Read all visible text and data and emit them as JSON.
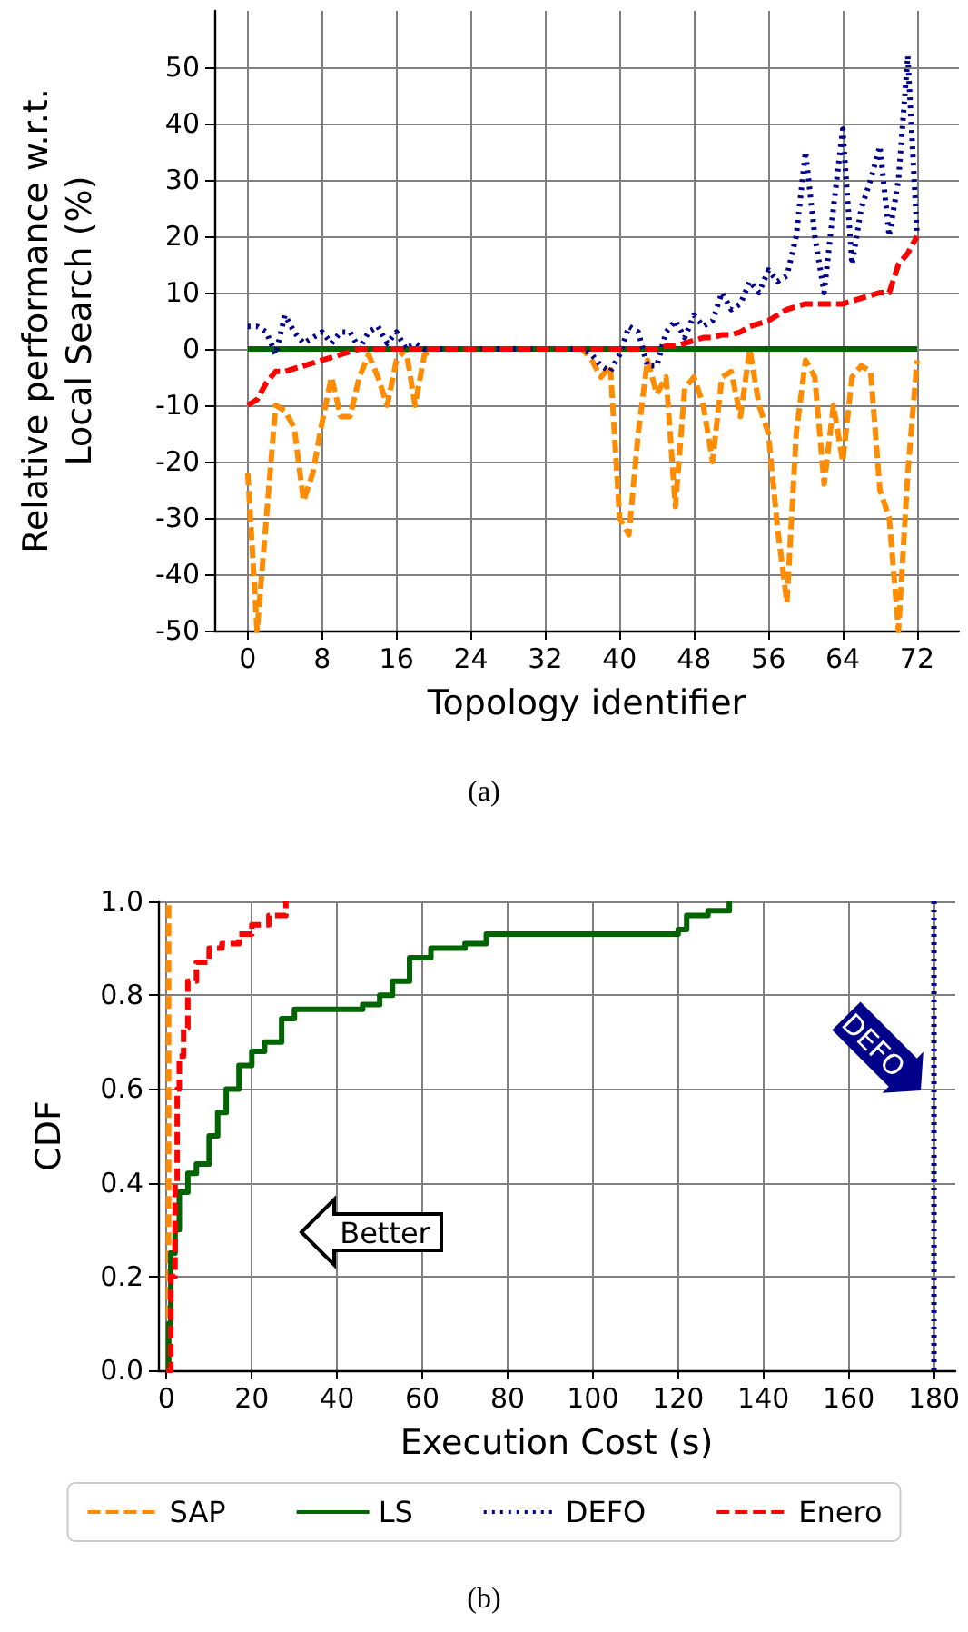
{
  "chart_data": [
    {
      "type": "line",
      "xlabel": "Topology identifier",
      "ylabel": "Relative performance w.r.t.\nLocal Search (%)",
      "xlim": [
        -3.6,
        76.5
      ],
      "ylim": [
        -50,
        60
      ],
      "xticks": [
        0,
        8,
        16,
        24,
        32,
        40,
        48,
        56,
        64,
        72
      ],
      "yticks": [
        -50,
        -40,
        -30,
        -20,
        -10,
        0,
        10,
        20,
        30,
        40,
        50
      ],
      "grid": true,
      "legend": false,
      "marker": "none",
      "annotations": [
        "(a)"
      ],
      "x": [
        0,
        1,
        2,
        3,
        4,
        5,
        6,
        7,
        8,
        9,
        10,
        11,
        12,
        13,
        14,
        15,
        16,
        17,
        18,
        19,
        20,
        21,
        22,
        23,
        24,
        25,
        26,
        27,
        28,
        29,
        30,
        31,
        32,
        33,
        34,
        35,
        36,
        37,
        38,
        39,
        40,
        41,
        42,
        43,
        44,
        45,
        46,
        47,
        48,
        49,
        50,
        51,
        52,
        53,
        54,
        55,
        56,
        57,
        58,
        59,
        60,
        61,
        62,
        63,
        64,
        65,
        66,
        67,
        68,
        69,
        70,
        71,
        72
      ],
      "series": [
        {
          "color": "#ff8c00",
          "line_style": "dashed",
          "values": [
            -22,
            -50,
            -30,
            -10,
            -11,
            -14,
            -27,
            -22,
            -13,
            -5,
            -12,
            -12,
            -5,
            -1,
            -5,
            -10,
            -2,
            0,
            -10,
            -1,
            0,
            0,
            0,
            0,
            0,
            0,
            0,
            0,
            0,
            0,
            0,
            0,
            0,
            0,
            0,
            0,
            0,
            -2,
            -5,
            -3,
            -30,
            -33,
            -15,
            -2,
            -8,
            -5,
            -28,
            -7,
            -5,
            -10,
            -20,
            -5,
            -4,
            -12,
            0,
            -10,
            -15,
            -32,
            -45,
            -15,
            -2,
            -5,
            -24,
            -10,
            -20,
            -5,
            -3,
            -4,
            -25,
            -30,
            -50,
            -22,
            -2
          ]
        },
        {
          "color": "#006400",
          "line_style": "solid",
          "values": [
            0,
            0,
            0,
            0,
            0,
            0,
            0,
            0,
            0,
            0,
            0,
            0,
            0,
            0,
            0,
            0,
            0,
            0,
            0,
            0,
            0,
            0,
            0,
            0,
            0,
            0,
            0,
            0,
            0,
            0,
            0,
            0,
            0,
            0,
            0,
            0,
            0,
            0,
            0,
            0,
            0,
            0,
            0,
            0,
            0,
            0,
            0,
            0,
            0,
            0,
            0,
            0,
            0,
            0,
            0,
            0,
            0,
            0,
            0,
            0,
            0,
            0,
            0,
            0,
            0,
            0,
            0,
            0,
            0,
            0,
            0,
            0,
            0
          ]
        },
        {
          "color": "#00008b",
          "line_style": "dotted",
          "values": [
            4,
            4,
            3,
            -1,
            6,
            3,
            1,
            2,
            3,
            1,
            3,
            3,
            0,
            3,
            4,
            1,
            3,
            0,
            1,
            0,
            0,
            0,
            0,
            0,
            0,
            0,
            0,
            0,
            0,
            0,
            0,
            0,
            0,
            0,
            0,
            0,
            0,
            -1,
            -3,
            -4,
            -1,
            4,
            3,
            -3,
            -3,
            3,
            5,
            2,
            6,
            4,
            5,
            10,
            7,
            8,
            12,
            10,
            14,
            12,
            13,
            20,
            35,
            20,
            10,
            25,
            39,
            15,
            25,
            30,
            36,
            20,
            30,
            52,
            20
          ]
        },
        {
          "color": "#ff0000",
          "line_style": "dashed",
          "values": [
            -10,
            -9,
            -6,
            -4,
            -4,
            -3.5,
            -3,
            -2.5,
            -2,
            -1.5,
            -1,
            -0.5,
            0,
            0,
            0,
            0,
            0,
            0,
            0,
            0,
            0,
            0,
            0,
            0,
            0,
            0,
            0,
            0,
            0,
            0,
            0,
            0,
            0,
            0,
            0,
            0,
            0,
            0,
            0,
            0,
            0,
            0,
            0,
            0,
            0,
            0.5,
            0.5,
            1,
            1.5,
            2,
            2,
            2.5,
            2.5,
            3,
            4,
            4.5,
            5,
            6,
            7,
            7.5,
            8,
            8,
            8,
            8,
            8,
            8.5,
            9,
            9.5,
            10,
            10,
            15,
            17,
            20
          ]
        }
      ]
    },
    {
      "type": "step",
      "xlabel": "Execution Cost (s)",
      "ylabel": "CDF",
      "xlim": [
        -2,
        185
      ],
      "ylim": [
        0,
        1
      ],
      "xticks": [
        0,
        20,
        40,
        60,
        80,
        100,
        120,
        140,
        160,
        180
      ],
      "yticks": [
        {
          "value": 0,
          "label": "0.0"
        },
        {
          "value": 0.2,
          "label": "0.2"
        },
        {
          "value": 0.4,
          "label": "0.4"
        },
        {
          "value": 0.6,
          "label": "0.6"
        },
        {
          "value": 0.8,
          "label": "0.8"
        },
        {
          "value": 1,
          "label": "1.0"
        }
      ],
      "grid": true,
      "legend": "bottom",
      "marker": "none",
      "annotations": [
        "Better",
        "DEFO",
        "(b)"
      ],
      "series": [
        {
          "name": "SAP",
          "color": "#ff8c00",
          "line_style": "dashed",
          "x": [
            0,
            0.5
          ],
          "values": [
            0,
            1
          ]
        },
        {
          "name": "LS",
          "color": "#006400",
          "line_style": "solid",
          "x": [
            0,
            0.5,
            1,
            2,
            3,
            5,
            7,
            10,
            12,
            14,
            17,
            20,
            23,
            27,
            30,
            46,
            50,
            53,
            57,
            62,
            70,
            75,
            120,
            122,
            127,
            132
          ],
          "values": [
            0,
            0.1,
            0.25,
            0.3,
            0.38,
            0.42,
            0.44,
            0.5,
            0.55,
            0.6,
            0.65,
            0.68,
            0.7,
            0.75,
            0.77,
            0.78,
            0.8,
            0.83,
            0.88,
            0.9,
            0.91,
            0.93,
            0.94,
            0.97,
            0.98,
            1
          ]
        },
        {
          "name": "DEFO",
          "color": "#00008b",
          "line_style": "dotted",
          "x": [
            180,
            180
          ],
          "values": [
            0,
            1
          ]
        },
        {
          "name": "Enero",
          "color": "#ff0000",
          "line_style": "dashed",
          "x": [
            0,
            1,
            2,
            2.5,
            3,
            4,
            5,
            7,
            10,
            13,
            17,
            20,
            24,
            28
          ],
          "values": [
            0,
            0.2,
            0.4,
            0.6,
            0.67,
            0.73,
            0.83,
            0.87,
            0.9,
            0.91,
            0.93,
            0.95,
            0.97,
            1
          ]
        }
      ]
    }
  ]
}
